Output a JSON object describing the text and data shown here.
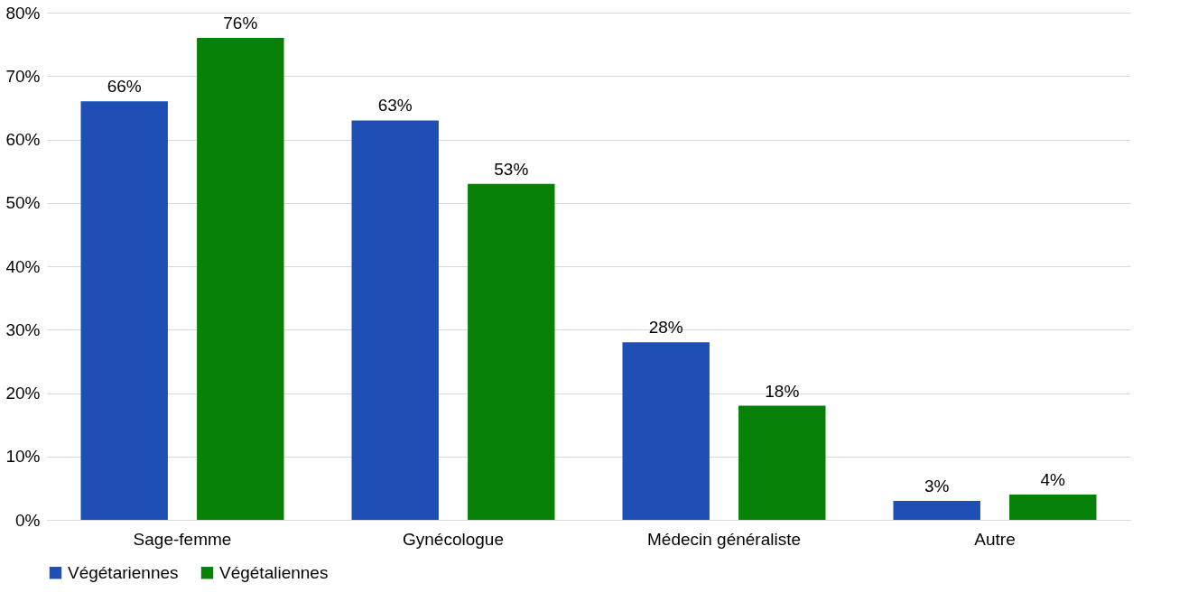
{
  "chart_data": {
    "type": "bar",
    "categories": [
      "Sage-femme",
      "Gynécologue",
      "Médecin généraliste",
      "Autre"
    ],
    "series": [
      {
        "name": "Végétariennes",
        "color": "#1f4eb4",
        "values": [
          66,
          63,
          28,
          3
        ],
        "value_labels": [
          "66%",
          "63%",
          "28%",
          "3%"
        ]
      },
      {
        "name": "Végétaliennes",
        "color": "#078007",
        "values": [
          76,
          53,
          18,
          4
        ],
        "value_labels": [
          "76%",
          "53%",
          "18%",
          "4%"
        ]
      }
    ],
    "ylim": [
      0,
      80
    ],
    "yticks": [
      {
        "value": 0,
        "label": "0%"
      },
      {
        "value": 10,
        "label": "10%"
      },
      {
        "value": 20,
        "label": "20%"
      },
      {
        "value": 30,
        "label": "30%"
      },
      {
        "value": 40,
        "label": "40%"
      },
      {
        "value": 50,
        "label": "50%"
      },
      {
        "value": 60,
        "label": "60%"
      },
      {
        "value": 70,
        "label": "70%"
      },
      {
        "value": 80,
        "label": "80%"
      }
    ],
    "grid": "y",
    "legend": "bottom"
  }
}
